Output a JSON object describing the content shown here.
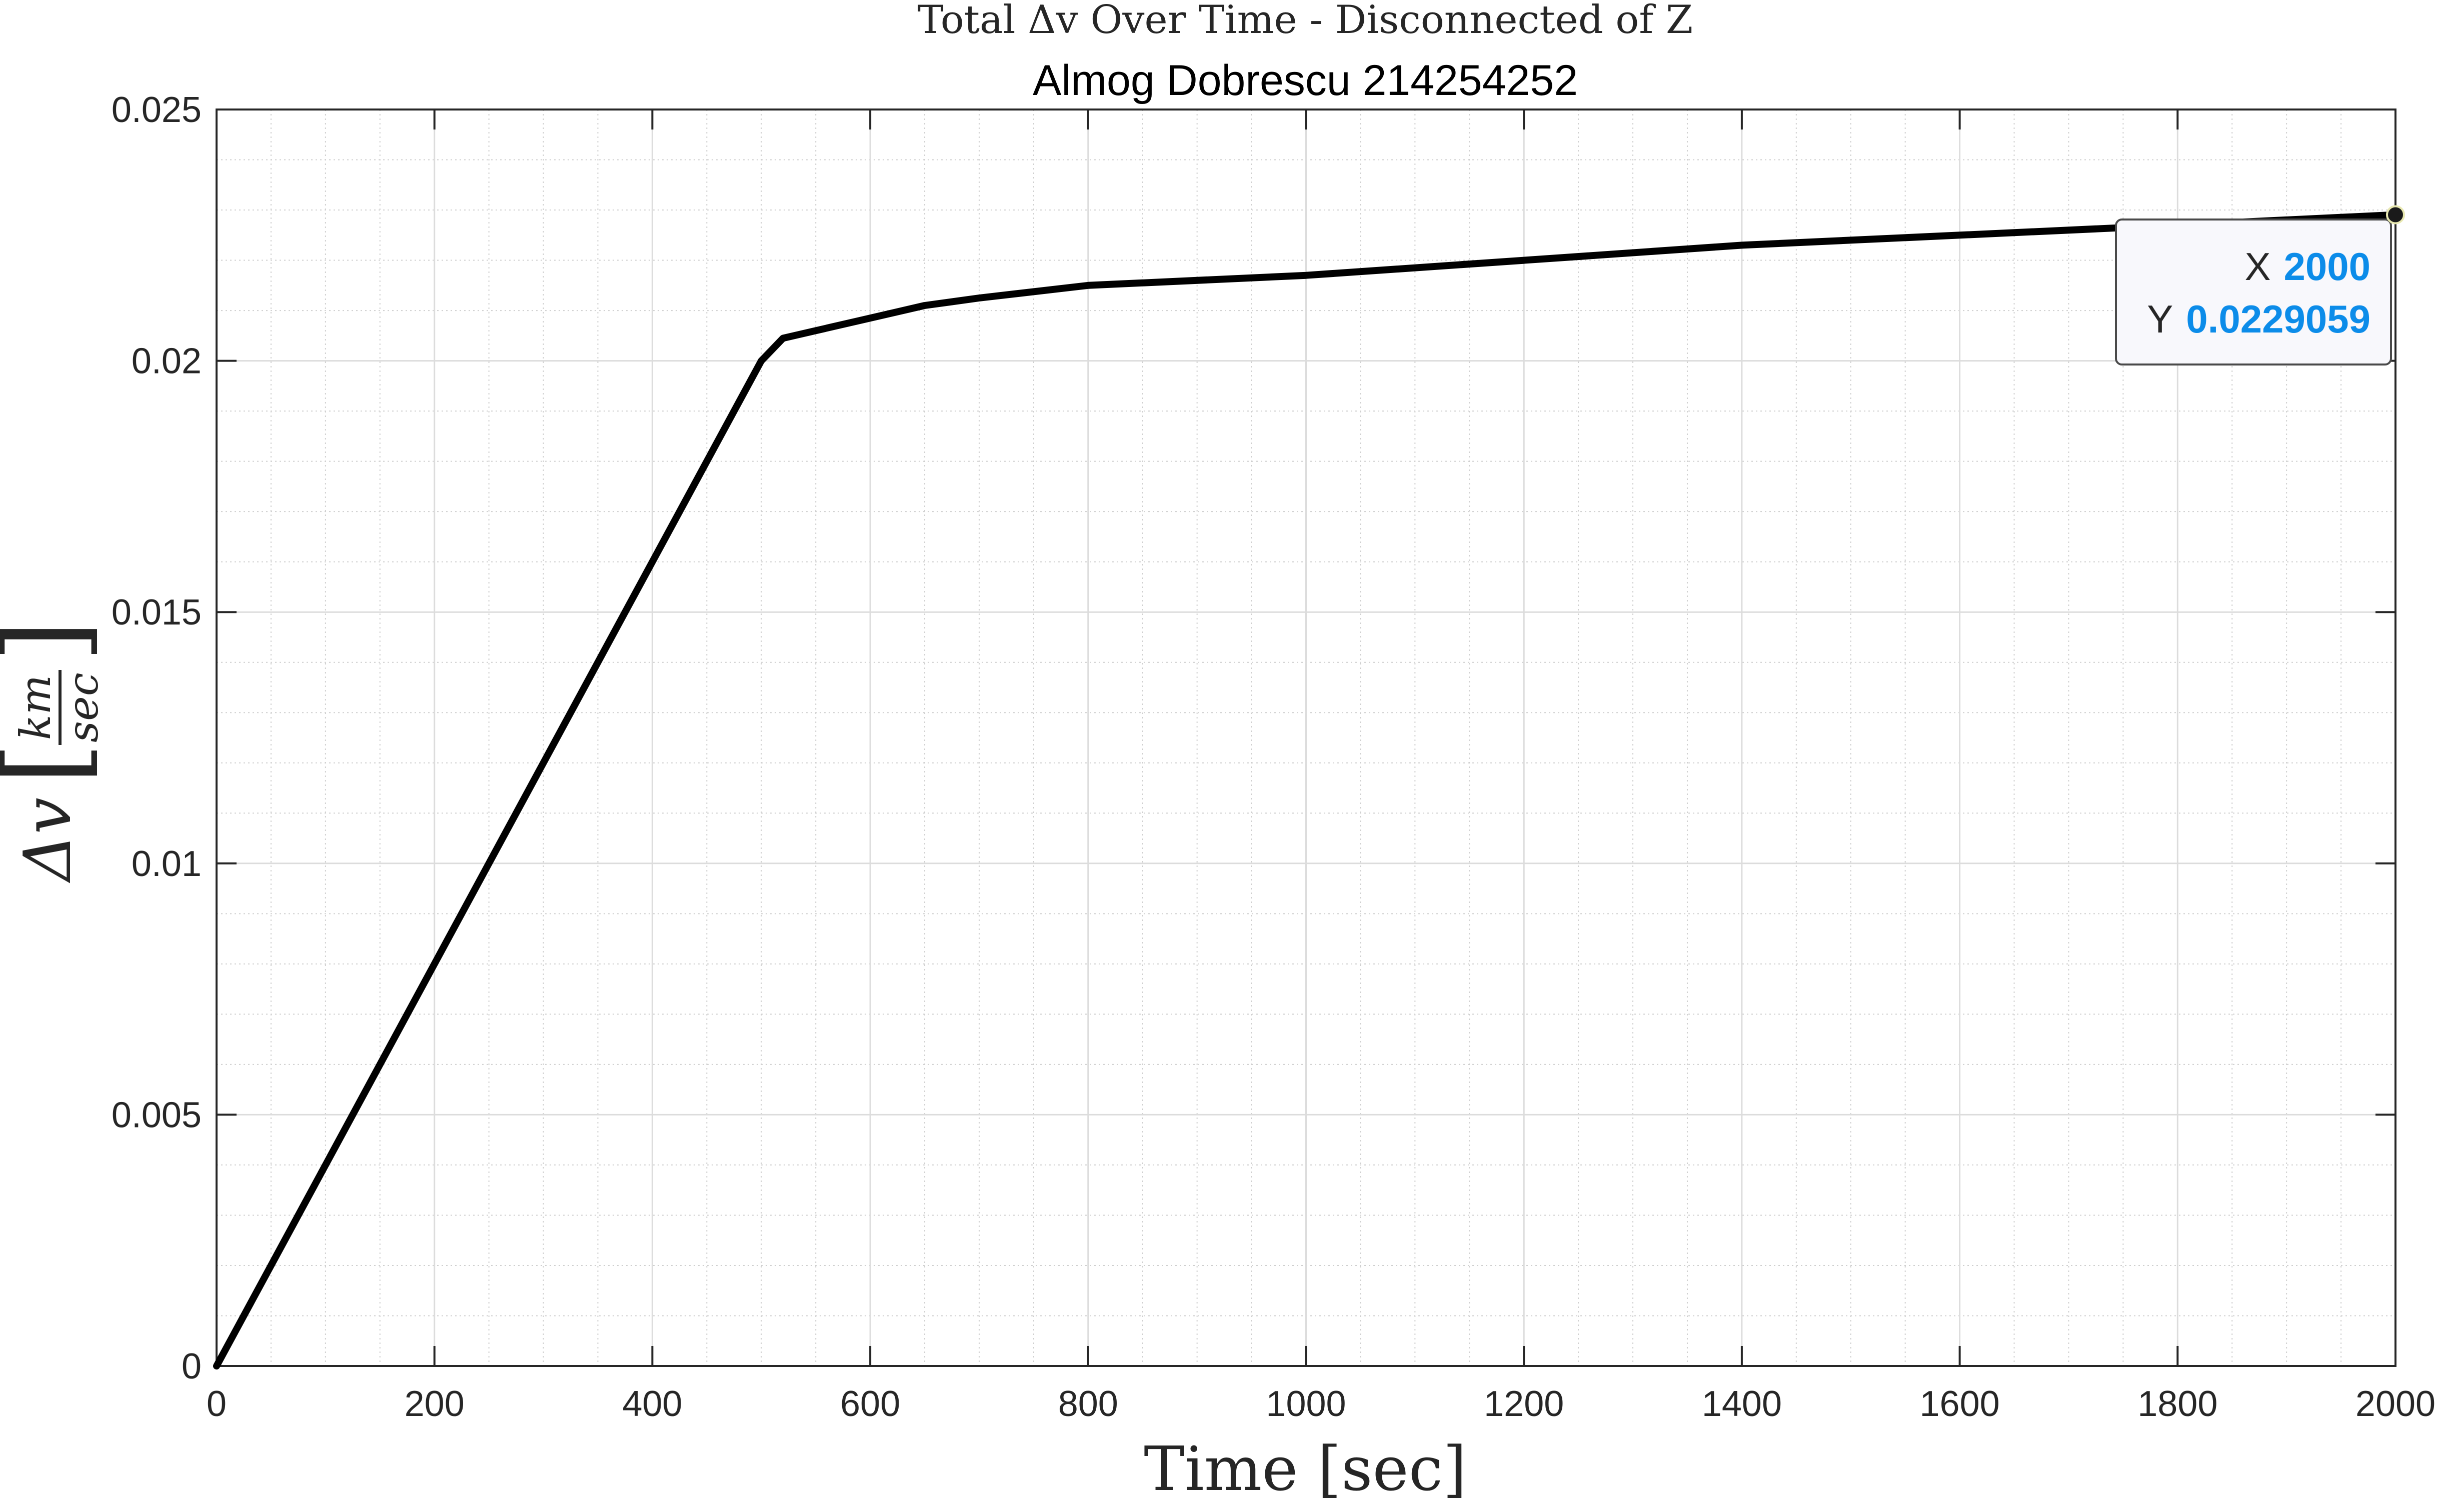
{
  "chart_data": {
    "type": "line",
    "title": "Total Δv Over Time - Disconnected of Z",
    "subtitle": "Almog Dobrescu 214254252",
    "xlabel": "Time [sec]",
    "ylabel": {
      "symbol": "Δv",
      "unit_numerator": "km",
      "unit_denominator": "sec"
    },
    "xlim": [
      0,
      2000
    ],
    "ylim": [
      0,
      0.025
    ],
    "x_ticks": [
      "0",
      "200",
      "400",
      "600",
      "800",
      "1000",
      "1200",
      "1400",
      "1600",
      "1800",
      "2000"
    ],
    "y_ticks": [
      "0",
      "0.005",
      "0.01",
      "0.015",
      "0.02",
      "0.025"
    ],
    "grid": true,
    "minor_grid": true,
    "series": [
      {
        "color": "#000000",
        "x": [
          0,
          100,
          200,
          300,
          400,
          480,
          500,
          520,
          550,
          600,
          650,
          700,
          800,
          1000,
          1200,
          1400,
          1600,
          1800,
          2000
        ],
        "y": [
          0,
          0.004,
          0.008,
          0.012,
          0.016,
          0.0192,
          0.02,
          0.02045,
          0.0206,
          0.02085,
          0.0211,
          0.02125,
          0.0215,
          0.0217,
          0.022,
          0.0223,
          0.0225,
          0.0227,
          0.0229059
        ]
      }
    ],
    "datatip": {
      "x_label": "X",
      "x_value": "2000",
      "y_label": "Y",
      "y_value": "0.0229059",
      "x": 2000,
      "y": 0.0229059
    }
  }
}
